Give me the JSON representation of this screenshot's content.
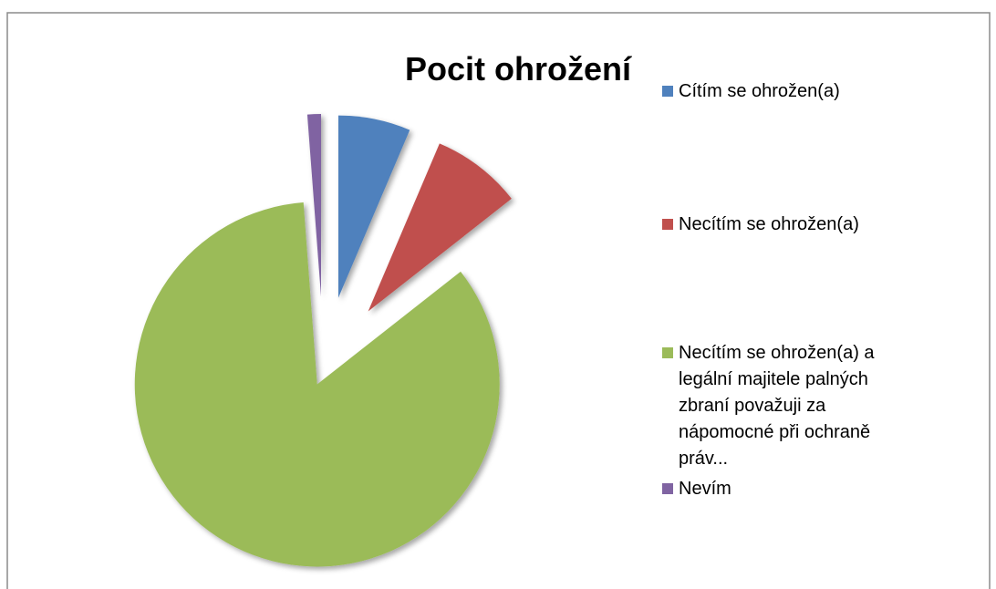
{
  "chart_data": {
    "type": "pie",
    "title": "Pocit ohrožení",
    "categories": [
      "Cítím se ohrožen(a)",
      "Necítím se ohrožen(a)",
      "Necítím se ohrožen(a) a legální majitele palných zbraní považuji za nápomocné při ochraně práv...",
      "Nevím"
    ],
    "values": [
      6.4,
      8,
      84.4,
      1.2
    ],
    "colors": [
      "#4f81bd",
      "#c0504d",
      "#9bbb59",
      "#8064a2"
    ],
    "legend": "right"
  }
}
